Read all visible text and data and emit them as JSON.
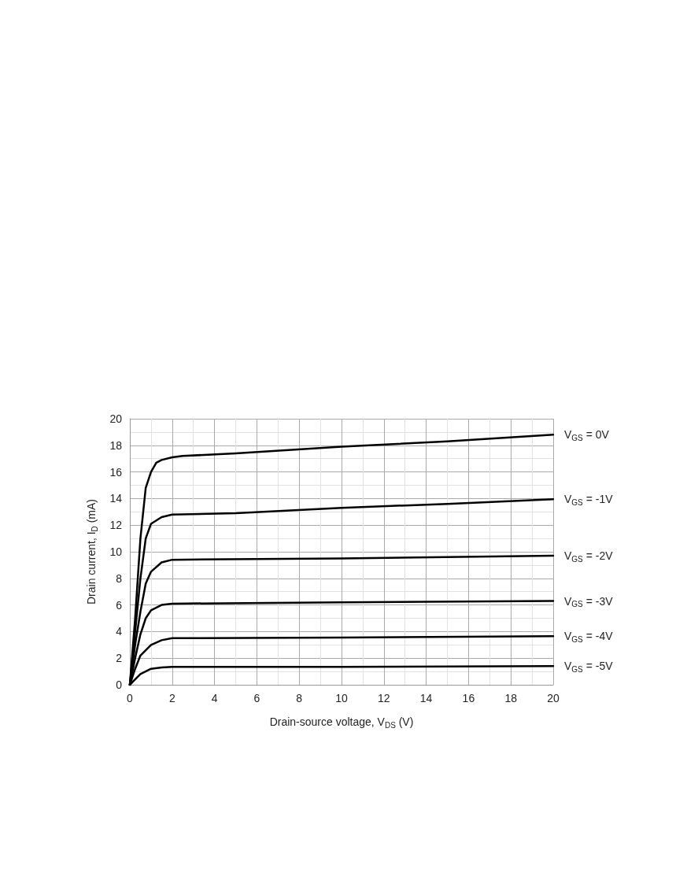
{
  "chart_data": {
    "type": "line",
    "xlabel": "Drain-source voltage, V$_{DS}$ (V)",
    "ylabel": "Drain current, I$_{D}$ (mA)",
    "xlim": [
      0,
      20
    ],
    "xticks": [
      0,
      2,
      4,
      6,
      8,
      10,
      12,
      14,
      16,
      18,
      20
    ],
    "ylim": [
      0,
      20
    ],
    "yticks": [
      0,
      2,
      4,
      6,
      8,
      10,
      12,
      14,
      16,
      18,
      20
    ],
    "grid": true,
    "marker": "none",
    "line_style": "solid",
    "legend": false,
    "series": [
      {
        "name": "V$_{GS}$ = 0V",
        "color": "#000000",
        "x": [
          0,
          0.25,
          0.5,
          0.75,
          1,
          1.25,
          1.5,
          2,
          2.5,
          5,
          10,
          15,
          20
        ],
        "values": [
          0,
          5,
          11,
          14.8,
          16,
          16.7,
          16.9,
          17.1,
          17.2,
          17.4,
          17.9,
          18.3,
          18.8
        ]
      },
      {
        "name": "V$_{GS}$ = -1V",
        "color": "#000000",
        "x": [
          0,
          0.25,
          0.5,
          0.75,
          1,
          1.5,
          2,
          5,
          10,
          15,
          20
        ],
        "values": [
          0,
          4,
          8,
          11,
          12.1,
          12.6,
          12.8,
          12.9,
          13.3,
          13.6,
          13.95
        ]
      },
      {
        "name": "V$_{GS}$ = -2V",
        "color": "#000000",
        "x": [
          0,
          0.25,
          0.5,
          0.75,
          1,
          1.5,
          2,
          10,
          20
        ],
        "values": [
          0,
          3,
          5.5,
          7.6,
          8.5,
          9.2,
          9.4,
          9.5,
          9.7
        ]
      },
      {
        "name": "V$_{GS}$ = -3V",
        "color": "#000000",
        "x": [
          0,
          0.25,
          0.5,
          0.75,
          1,
          1.5,
          2,
          10,
          20
        ],
        "values": [
          0,
          2,
          3.8,
          5,
          5.6,
          6,
          6.1,
          6.2,
          6.3
        ]
      },
      {
        "name": "V$_{GS}$ = -4V",
        "color": "#000000",
        "x": [
          0,
          0.25,
          0.5,
          1,
          1.5,
          2,
          10,
          20
        ],
        "values": [
          0,
          1.2,
          2.2,
          3,
          3.35,
          3.5,
          3.55,
          3.65
        ]
      },
      {
        "name": "V$_{GS}$ = -5V",
        "color": "#000000",
        "x": [
          0,
          0.25,
          0.5,
          1,
          1.5,
          2,
          10,
          20
        ],
        "values": [
          0,
          0.4,
          0.8,
          1.2,
          1.3,
          1.35,
          1.35,
          1.4
        ]
      }
    ]
  }
}
